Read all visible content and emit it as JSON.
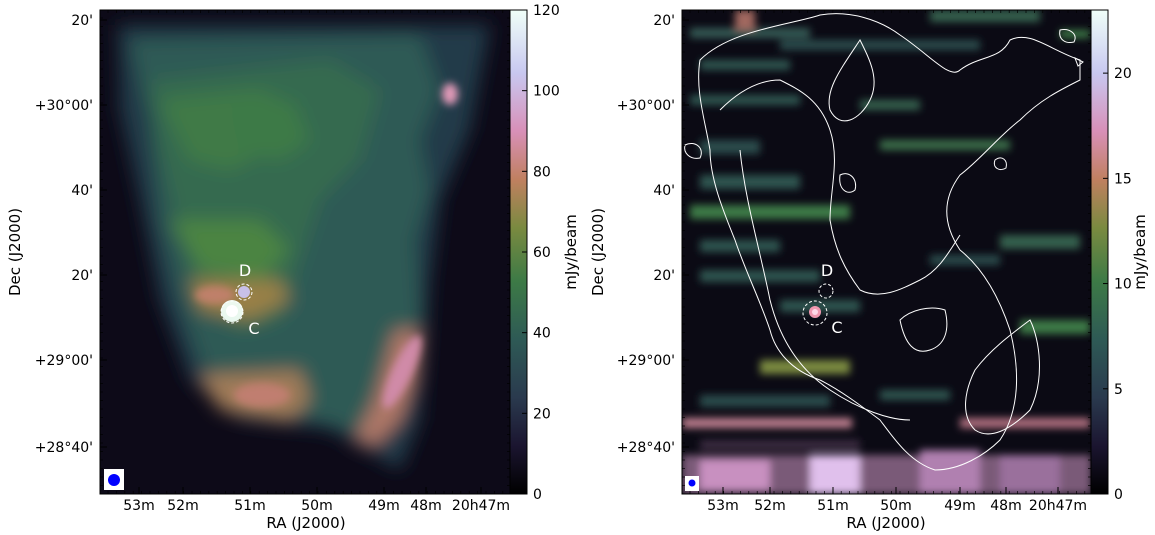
{
  "panels": [
    {
      "id": "left",
      "xlabel": "RA (J2000)",
      "ylabel": "Dec (J2000)",
      "x_ticks": [
        "53m",
        "52m",
        "51m",
        "50m",
        "49m",
        "48m",
        "20h47m"
      ],
      "y_ticks": [
        "20'",
        "+30°00'",
        "40'",
        "20'",
        "+29°00'",
        "+28°40'"
      ],
      "colorbar": {
        "label": "mJy/beam",
        "ticks": [
          "0",
          "20",
          "40",
          "60",
          "80",
          "100",
          "120"
        ],
        "range": [
          0,
          120
        ]
      },
      "sources": [
        {
          "label": "D"
        },
        {
          "label": "C"
        }
      ],
      "contours": false
    },
    {
      "id": "right",
      "xlabel": "RA (J2000)",
      "ylabel": "Dec (J2000)",
      "x_ticks": [
        "53m",
        "52m",
        "51m",
        "50m",
        "49m",
        "48m",
        "20h47m"
      ],
      "y_ticks": [
        "20'",
        "+30°00'",
        "40'",
        "20'",
        "+29°00'",
        "+28°40'"
      ],
      "colorbar": {
        "label": "mJy/beam",
        "ticks": [
          "0",
          "5",
          "10",
          "15",
          "20"
        ],
        "range": [
          0,
          23
        ]
      },
      "sources": [
        {
          "label": "D"
        },
        {
          "label": "C"
        }
      ],
      "contours": true
    }
  ],
  "colormap": [
    "#000000",
    "#1b1530",
    "#2a3a4e",
    "#2e5a55",
    "#3d7a46",
    "#7a8a40",
    "#c08060",
    "#d890b8",
    "#c8c8f0",
    "#f0fff8"
  ],
  "colors": {
    "source_marker": "#ffffff",
    "beam": "#0000ff",
    "contour": "#ffffff"
  }
}
